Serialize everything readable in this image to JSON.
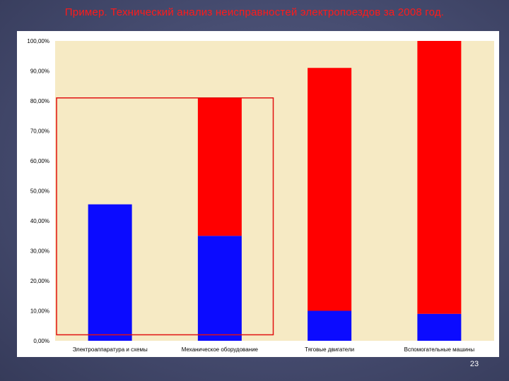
{
  "slide": {
    "title": "Пример. Технический анализ неисправностей электропоездов за 2008 год.",
    "page_number": "23"
  },
  "colors": {
    "background": "#464c70",
    "plot_area": "#f6eac4",
    "series_bottom": "#0b0bff",
    "series_top": "#ff0000",
    "highlight_frame": "#e11111",
    "title": "#ff1a1a"
  },
  "chart_data": {
    "type": "bar",
    "stacked": true,
    "categories": [
      "Электроаппаратура и схемы",
      "Механическое оборудование",
      "Тяговые двигатели",
      "Вспомогательные машины"
    ],
    "series": [
      {
        "color": "#0b0bff",
        "values": [
          45.5,
          35.0,
          10.0,
          9.0
        ]
      },
      {
        "color": "#ff0000",
        "values": [
          0.0,
          46.0,
          81.0,
          91.0
        ]
      }
    ],
    "y_ticks": [
      "0,00%",
      "10,00%",
      "20,00%",
      "30,00%",
      "40,00%",
      "50,00%",
      "60,00%",
      "70,00%",
      "80,00%",
      "90,00%",
      "100,00%"
    ],
    "ylim": [
      0,
      100
    ],
    "grid": false,
    "legend": "none",
    "highlight_frame": {
      "categories": [
        0,
        1
      ],
      "y_range": [
        2,
        81
      ]
    }
  }
}
